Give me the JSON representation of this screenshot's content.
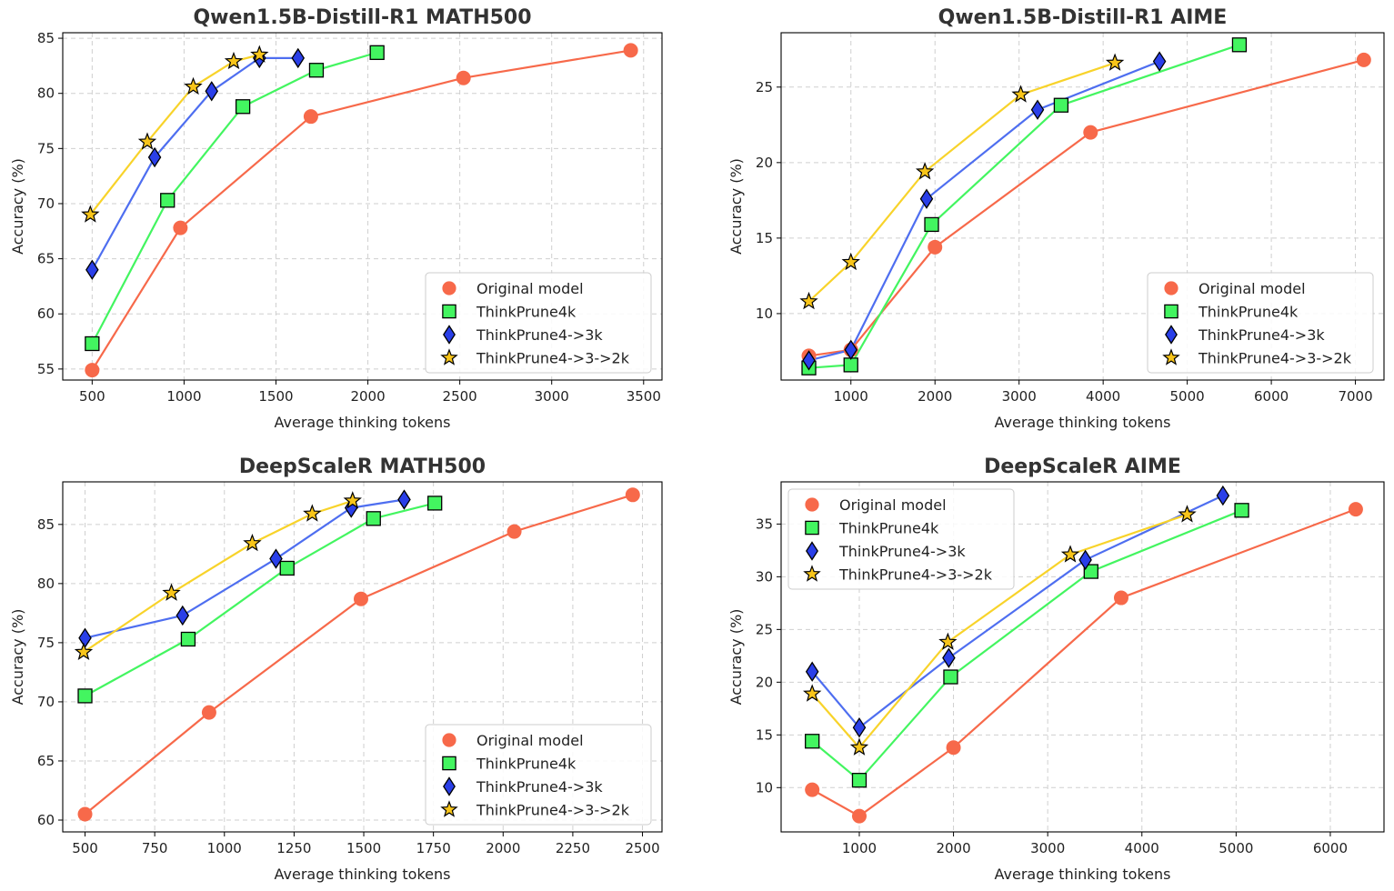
{
  "colors": {
    "original": "#f7694a",
    "tp4k": "#43f560",
    "tp43": "#4e6ef0",
    "tp432": "#f8d32a",
    "marker_tp43": "#2a3fe8",
    "marker_tp432": "#f8c51a",
    "grid": "#cfcfcf"
  },
  "chart_data": [
    {
      "type": "line",
      "title": "Qwen1.5B-Distill-R1 MATH500",
      "xlabel": "Average thinking tokens",
      "ylabel": "Accuracy (%)",
      "xlim": [
        340,
        3600
      ],
      "ylim": [
        54,
        85.5
      ],
      "xticks": [
        500,
        1000,
        1500,
        2000,
        2500,
        3000,
        3500
      ],
      "yticks": [
        55,
        60,
        65,
        70,
        75,
        80,
        85
      ],
      "xticklabels": [
        "500",
        "1000",
        "1500",
        "2000",
        "2500",
        "3000",
        "3500"
      ],
      "yticklabels": [
        "55",
        "60",
        "65",
        "70",
        "75",
        "80",
        "85"
      ],
      "legend_position": "lower-right",
      "series": [
        {
          "name": "Original model",
          "marker": "circle",
          "x": [
            500,
            980,
            1690,
            2520,
            3430
          ],
          "y": [
            54.9,
            67.8,
            77.9,
            81.4,
            83.9
          ]
        },
        {
          "name": "ThinkPrune4k",
          "marker": "square",
          "x": [
            500,
            910,
            1320,
            1720,
            2050
          ],
          "y": [
            57.3,
            70.3,
            78.8,
            82.1,
            83.7
          ]
        },
        {
          "name": "ThinkPrune4->3k",
          "marker": "diamond",
          "x": [
            500,
            840,
            1150,
            1410,
            1620
          ],
          "y": [
            64.0,
            74.2,
            80.2,
            83.2,
            83.2
          ]
        },
        {
          "name": "ThinkPrune4->3->2k",
          "marker": "star",
          "x": [
            490,
            800,
            1050,
            1270,
            1410
          ],
          "y": [
            69.0,
            75.6,
            80.6,
            82.9,
            83.5
          ]
        }
      ]
    },
    {
      "type": "line",
      "title": "Qwen1.5B-Distill-R1 AIME",
      "xlabel": "Average thinking tokens",
      "ylabel": "Accuracy (%)",
      "xlim": [
        170,
        7340
      ],
      "ylim": [
        5.6,
        28.6
      ],
      "xticks": [
        1000,
        2000,
        3000,
        4000,
        5000,
        6000,
        7000
      ],
      "yticks": [
        10,
        15,
        20,
        25
      ],
      "xticklabels": [
        "1000",
        "2000",
        "3000",
        "4000",
        "5000",
        "6000",
        "7000"
      ],
      "yticklabels": [
        "10",
        "15",
        "20",
        "25"
      ],
      "legend_position": "lower-right",
      "series": [
        {
          "name": "Original model",
          "marker": "circle",
          "x": [
            500,
            1000,
            2000,
            3850,
            7100
          ],
          "y": [
            7.2,
            7.6,
            14.4,
            22.0,
            26.8
          ]
        },
        {
          "name": "ThinkPrune4k",
          "marker": "square",
          "x": [
            500,
            1000,
            1960,
            3500,
            5620
          ],
          "y": [
            6.4,
            6.6,
            15.9,
            23.8,
            27.8
          ]
        },
        {
          "name": "ThinkPrune4->3k",
          "marker": "diamond",
          "x": [
            500,
            1000,
            1900,
            3220,
            4670
          ],
          "y": [
            6.9,
            7.6,
            17.6,
            23.5,
            26.7
          ]
        },
        {
          "name": "ThinkPrune4->3->2k",
          "marker": "star",
          "x": [
            500,
            1000,
            1880,
            3020,
            4140
          ],
          "y": [
            10.8,
            13.4,
            19.4,
            24.5,
            26.6
          ]
        }
      ]
    },
    {
      "type": "line",
      "title": "DeepScaleR MATH500",
      "xlabel": "Average thinking tokens",
      "ylabel": "Accuracy (%)",
      "xlim": [
        420,
        2570
      ],
      "ylim": [
        59.0,
        88.6
      ],
      "xticks": [
        500,
        750,
        1000,
        1250,
        1500,
        1750,
        2000,
        2250,
        2500
      ],
      "yticks": [
        60,
        65,
        70,
        75,
        80,
        85
      ],
      "xticklabels": [
        "500",
        "750",
        "1000",
        "1250",
        "1500",
        "1750",
        "2000",
        "2250",
        "2500"
      ],
      "yticklabels": [
        "60",
        "65",
        "70",
        "75",
        "80",
        "85"
      ],
      "legend_position": "lower-right",
      "series": [
        {
          "name": "Original model",
          "marker": "circle",
          "x": [
            500,
            945,
            1490,
            2040,
            2465
          ],
          "y": [
            60.5,
            69.1,
            78.7,
            84.4,
            87.5
          ]
        },
        {
          "name": "ThinkPrune4k",
          "marker": "square",
          "x": [
            500,
            870,
            1225,
            1535,
            1755
          ],
          "y": [
            70.5,
            75.3,
            81.3,
            85.5,
            86.8
          ]
        },
        {
          "name": "ThinkPrune4->3k",
          "marker": "diamond",
          "x": [
            500,
            850,
            1185,
            1455,
            1645
          ],
          "y": [
            75.4,
            77.3,
            82.1,
            86.4,
            87.1
          ]
        },
        {
          "name": "ThinkPrune4->3->2k",
          "marker": "star",
          "x": [
            495,
            810,
            1100,
            1315,
            1460
          ],
          "y": [
            74.2,
            79.2,
            83.4,
            85.9,
            87.0
          ]
        }
      ]
    },
    {
      "type": "line",
      "title": "DeepScaleR AIME",
      "xlabel": "Average thinking tokens",
      "ylabel": "Accuracy (%)",
      "xlim": [
        170,
        6570
      ],
      "ylim": [
        5.8,
        39.0
      ],
      "xticks": [
        1000,
        2000,
        3000,
        4000,
        5000,
        6000
      ],
      "yticks": [
        10,
        15,
        20,
        25,
        30,
        35
      ],
      "xticklabels": [
        "1000",
        "2000",
        "3000",
        "4000",
        "5000",
        "6000"
      ],
      "yticklabels": [
        "10",
        "15",
        "20",
        "25",
        "30",
        "35"
      ],
      "legend_position": "upper-left",
      "series": [
        {
          "name": "Original model",
          "marker": "circle",
          "x": [
            500,
            1000,
            2000,
            3780,
            6270
          ],
          "y": [
            9.8,
            7.3,
            13.8,
            28.0,
            36.4
          ]
        },
        {
          "name": "ThinkPrune4k",
          "marker": "square",
          "x": [
            500,
            1000,
            1970,
            3460,
            5060
          ],
          "y": [
            14.4,
            10.7,
            20.5,
            30.5,
            36.3
          ]
        },
        {
          "name": "ThinkPrune4->3k",
          "marker": "diamond",
          "x": [
            500,
            1000,
            1950,
            3400,
            4860
          ],
          "y": [
            21.0,
            15.7,
            22.3,
            31.6,
            37.7
          ]
        },
        {
          "name": "ThinkPrune4->3->2k",
          "marker": "star",
          "x": [
            500,
            1000,
            1940,
            3240,
            4480
          ],
          "y": [
            18.9,
            13.8,
            23.8,
            32.1,
            35.9
          ]
        }
      ]
    }
  ]
}
